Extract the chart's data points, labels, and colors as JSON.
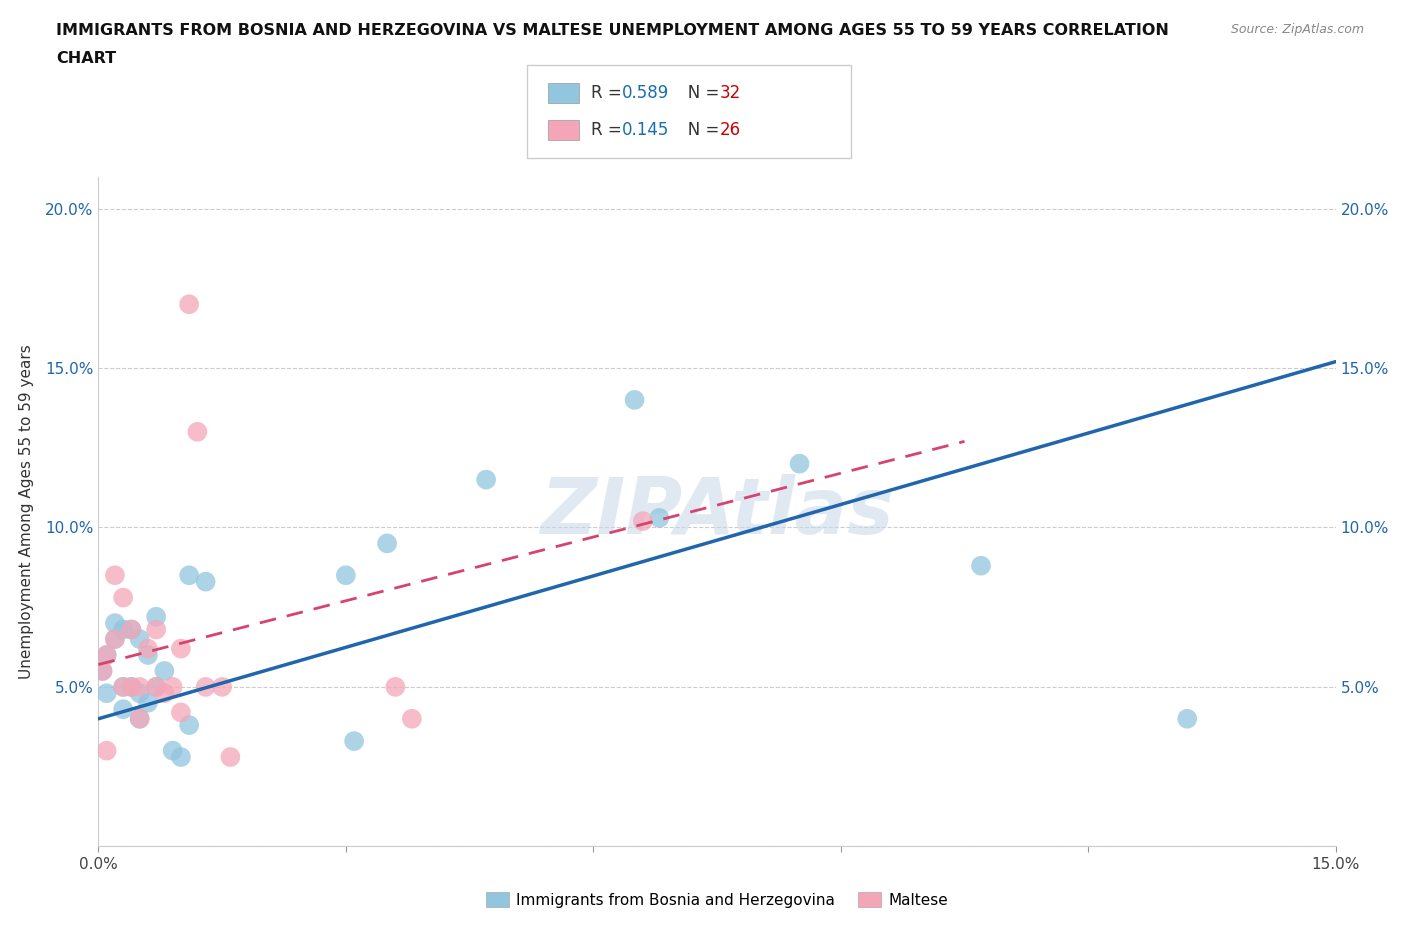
{
  "title_line1": "IMMIGRANTS FROM BOSNIA AND HERZEGOVINA VS MALTESE UNEMPLOYMENT AMONG AGES 55 TO 59 YEARS CORRELATION",
  "title_line2": "CHART",
  "source": "Source: ZipAtlas.com",
  "ylabel": "Unemployment Among Ages 55 to 59 years",
  "xlim": [
    0.0,
    0.15
  ],
  "ylim": [
    0.0,
    0.21
  ],
  "xticks": [
    0.0,
    0.03,
    0.06,
    0.09,
    0.12,
    0.15
  ],
  "xticklabels": [
    "0.0%",
    "",
    "",
    "",
    "",
    "15.0%"
  ],
  "yticks": [
    0.0,
    0.05,
    0.1,
    0.15,
    0.2
  ],
  "yticklabels": [
    "",
    "5.0%",
    "10.0%",
    "15.0%",
    "20.0%"
  ],
  "legend1_r": "0.589",
  "legend1_n": "32",
  "legend2_r": "0.145",
  "legend2_n": "26",
  "legend_bottom_label1": "Immigrants from Bosnia and Herzegovina",
  "legend_bottom_label2": "Maltese",
  "blue_color": "#92c5de",
  "pink_color": "#f4a6b8",
  "blue_line_color": "#2166ac",
  "pink_line_color": "#d6436e",
  "r_color": "#1a6faf",
  "n_color": "#cc0000",
  "watermark": "ZIPAtlas",
  "blue_scatter_x": [
    0.0005,
    0.001,
    0.001,
    0.002,
    0.002,
    0.003,
    0.003,
    0.003,
    0.004,
    0.004,
    0.005,
    0.005,
    0.005,
    0.006,
    0.006,
    0.007,
    0.007,
    0.008,
    0.009,
    0.01,
    0.011,
    0.011,
    0.013,
    0.03,
    0.031,
    0.035,
    0.047,
    0.065,
    0.068,
    0.085,
    0.107,
    0.132
  ],
  "blue_scatter_y": [
    0.055,
    0.06,
    0.048,
    0.07,
    0.065,
    0.068,
    0.05,
    0.043,
    0.05,
    0.068,
    0.065,
    0.048,
    0.04,
    0.06,
    0.045,
    0.072,
    0.05,
    0.055,
    0.03,
    0.028,
    0.038,
    0.085,
    0.083,
    0.085,
    0.033,
    0.095,
    0.115,
    0.14,
    0.103,
    0.12,
    0.088,
    0.04
  ],
  "pink_scatter_x": [
    0.0005,
    0.001,
    0.001,
    0.002,
    0.002,
    0.003,
    0.003,
    0.004,
    0.004,
    0.005,
    0.005,
    0.006,
    0.007,
    0.007,
    0.008,
    0.009,
    0.01,
    0.01,
    0.011,
    0.012,
    0.013,
    0.015,
    0.016,
    0.036,
    0.038,
    0.066
  ],
  "pink_scatter_y": [
    0.055,
    0.06,
    0.03,
    0.085,
    0.065,
    0.078,
    0.05,
    0.05,
    0.068,
    0.05,
    0.04,
    0.062,
    0.05,
    0.068,
    0.048,
    0.05,
    0.062,
    0.042,
    0.17,
    0.13,
    0.05,
    0.05,
    0.028,
    0.05,
    0.04,
    0.102
  ],
  "blue_line_x": [
    0.0,
    0.15
  ],
  "blue_line_y": [
    0.04,
    0.152
  ],
  "pink_line_x": [
    0.0,
    0.105
  ],
  "pink_line_y": [
    0.057,
    0.127
  ]
}
